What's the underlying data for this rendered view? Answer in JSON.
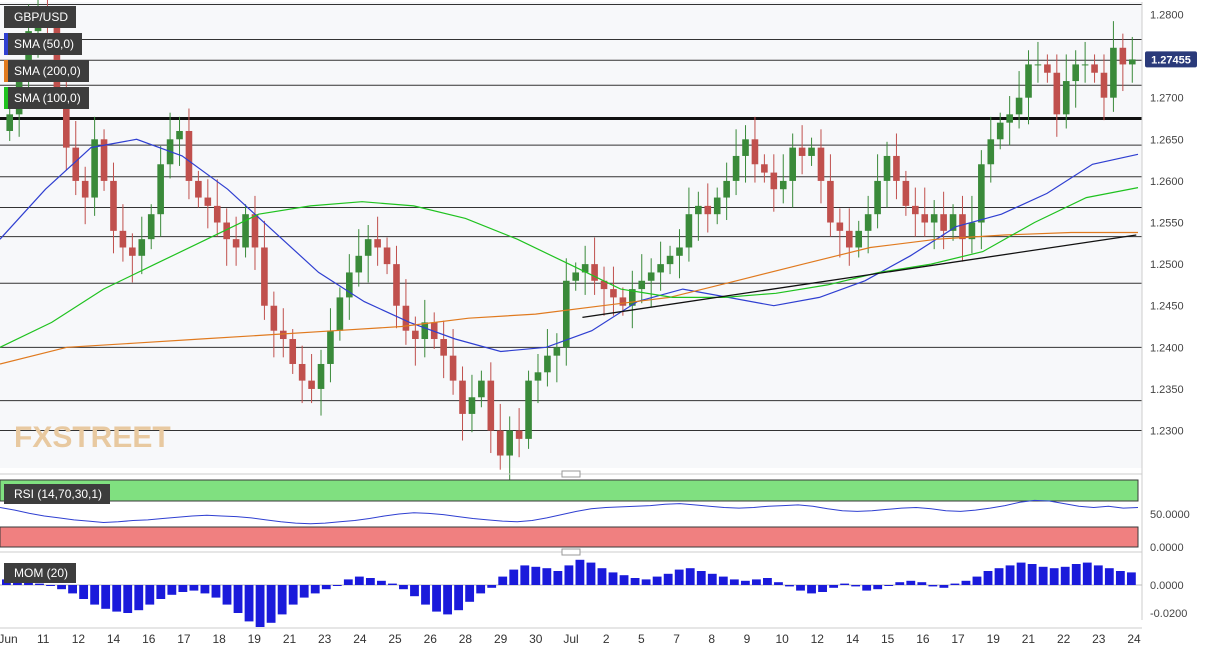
{
  "symbol": "GBP/USD",
  "indicators": [
    {
      "label": "SMA (50,0)",
      "color": "#2f3fd1"
    },
    {
      "label": "SMA (200,0)",
      "color": "#e07a1f"
    },
    {
      "label": "SMA (100,0)",
      "color": "#1fc21f"
    }
  ],
  "watermark": "FXSTREET",
  "price_label": "1.27455",
  "rsi": {
    "label": "RSI (14,70,30,1)",
    "ticks": [
      "50.0000",
      "0.0000"
    ],
    "upper_color": "#80e080",
    "lower_color": "#f08080"
  },
  "mom": {
    "label": "MOM (20)",
    "ticks": [
      "0.0000",
      "-0.0200"
    ],
    "color": "#1a1adb"
  },
  "x_labels": [
    "Jun",
    "11",
    "12",
    "14",
    "16",
    "17",
    "18",
    "19",
    "21",
    "23",
    "24",
    "25",
    "26",
    "28",
    "29",
    "30",
    "Jul",
    "2",
    "5",
    "7",
    "8",
    "9",
    "10",
    "12",
    "14",
    "15",
    "16",
    "17",
    "19",
    "21",
    "22",
    "23",
    "24"
  ],
  "chart_data": {
    "type": "line",
    "title": "GBP/USD",
    "ylim": [
      1.2255,
      1.2815
    ],
    "y_ticks": [
      "1.2800",
      "1.2750",
      "1.2700",
      "1.2650",
      "1.2600",
      "1.2550",
      "1.2500",
      "1.2450",
      "1.2400",
      "1.2350",
      "1.2300"
    ],
    "horizontal_levels": [
      1.2812,
      1.277,
      1.2745,
      1.2715,
      1.2675,
      1.2643,
      1.2605,
      1.2568,
      1.2533,
      1.2477,
      1.24,
      1.2336,
      1.23
    ],
    "key_level": 1.2675,
    "trendline": {
      "from": [
        0.51,
        1.2436
      ],
      "to": [
        0.995,
        1.2535
      ]
    },
    "series": [
      {
        "name": "GBP/USD",
        "values": [
          1.268,
          1.272,
          1.278,
          1.281,
          1.279,
          1.27,
          1.264,
          1.26,
          1.258,
          1.265,
          1.26,
          1.254,
          1.252,
          1.251,
          1.253,
          1.256,
          1.262,
          1.265,
          1.266,
          1.26,
          1.258,
          1.257,
          1.255,
          1.253,
          1.252,
          1.256,
          1.252,
          1.245,
          1.242,
          1.241,
          1.238,
          1.236,
          1.235,
          1.238,
          1.242,
          1.246,
          1.249,
          1.251,
          1.253,
          1.252,
          1.25,
          1.245,
          1.242,
          1.241,
          1.243,
          1.241,
          1.239,
          1.236,
          1.232,
          1.234,
          1.236,
          1.23,
          1.227,
          1.23,
          1.229,
          1.236,
          1.237,
          1.239,
          1.24,
          1.248,
          1.249,
          1.25,
          1.248,
          1.247,
          1.246,
          1.245,
          1.247,
          1.248,
          1.249,
          1.25,
          1.251,
          1.252,
          1.256,
          1.257,
          1.256,
          1.258,
          1.26,
          1.263,
          1.265,
          1.262,
          1.261,
          1.259,
          1.26,
          1.264,
          1.263,
          1.264,
          1.26,
          1.255,
          1.254,
          1.252,
          1.254,
          1.256,
          1.26,
          1.263,
          1.26,
          1.257,
          1.256,
          1.255,
          1.256,
          1.254,
          1.256,
          1.253,
          1.255,
          1.262,
          1.265,
          1.267,
          1.268,
          1.27,
          1.274,
          1.274,
          1.273,
          1.268,
          1.272,
          1.274,
          1.274,
          1.273,
          1.27,
          1.276,
          1.274,
          1.2746
        ]
      },
      {
        "name": "SMA (50,0)",
        "values": [
          1.253,
          1.259,
          1.264,
          1.265,
          1.263,
          1.259,
          1.254,
          1.249,
          1.2455,
          1.243,
          1.241,
          1.2395,
          1.24,
          1.242,
          1.2455,
          1.247,
          1.246,
          1.245,
          1.246,
          1.248,
          1.251,
          1.2545,
          1.256,
          1.2585,
          1.262,
          1.2632
        ]
      },
      {
        "name": "SMA (200,0)",
        "values": [
          1.238,
          1.24,
          1.2405,
          1.241,
          1.2415,
          1.242,
          1.2425,
          1.2435,
          1.244,
          1.245,
          1.246,
          1.248,
          1.25,
          1.252,
          1.253,
          1.2535,
          1.2538,
          1.2538
        ]
      },
      {
        "name": "SMA (100,0)",
        "values": [
          1.24,
          1.243,
          1.247,
          1.25,
          1.253,
          1.256,
          1.257,
          1.2575,
          1.257,
          1.2555,
          1.253,
          1.25,
          1.247,
          1.246,
          1.246,
          1.2465,
          1.2475,
          1.249,
          1.25,
          1.2515,
          1.255,
          1.258,
          1.2592
        ]
      }
    ],
    "rsi_values": [
      60,
      56,
      51,
      47,
      44,
      41,
      39,
      37,
      38,
      40,
      41,
      43,
      45,
      47,
      48,
      47,
      46,
      44,
      41,
      38,
      36,
      35,
      36,
      38,
      40,
      43,
      47,
      50,
      52,
      51,
      49,
      46,
      43,
      41,
      39,
      38,
      40,
      44,
      49,
      54,
      58,
      60,
      61,
      62,
      63,
      65,
      66,
      64,
      62,
      60,
      59,
      60,
      62,
      63,
      64,
      62,
      58,
      55,
      54,
      55,
      57,
      59,
      60,
      58,
      55,
      54,
      56,
      59,
      63,
      68,
      71,
      70,
      66,
      62,
      60,
      62,
      59,
      60
    ],
    "mom_values": [
      0.004,
      0.003,
      0.002,
      0.001,
      0.0,
      -0.003,
      -0.006,
      -0.01,
      -0.014,
      -0.017,
      -0.019,
      -0.02,
      -0.018,
      -0.014,
      -0.01,
      -0.007,
      -0.005,
      -0.004,
      -0.006,
      -0.009,
      -0.014,
      -0.02,
      -0.026,
      -0.03,
      -0.027,
      -0.021,
      -0.014,
      -0.009,
      -0.006,
      -0.003,
      0.0,
      0.004,
      0.006,
      0.005,
      0.003,
      0.001,
      -0.003,
      -0.008,
      -0.014,
      -0.019,
      -0.021,
      -0.018,
      -0.012,
      -0.006,
      -0.002,
      0.006,
      0.011,
      0.014,
      0.013,
      0.012,
      0.01,
      0.014,
      0.018,
      0.016,
      0.012,
      0.009,
      0.007,
      0.005,
      0.004,
      0.006,
      0.008,
      0.011,
      0.012,
      0.01,
      0.008,
      0.006,
      0.004,
      0.003,
      0.004,
      0.005,
      0.002,
      -0.001,
      -0.004,
      -0.006,
      -0.005,
      -0.002,
      0.001,
      -0.001,
      -0.004,
      -0.003,
      0.0,
      0.002,
      0.003,
      0.002,
      -0.001,
      -0.002,
      0.001,
      0.003,
      0.006,
      0.01,
      0.012,
      0.014,
      0.016,
      0.015,
      0.013,
      0.012,
      0.013,
      0.015,
      0.016,
      0.014,
      0.012,
      0.01,
      0.009
    ]
  }
}
